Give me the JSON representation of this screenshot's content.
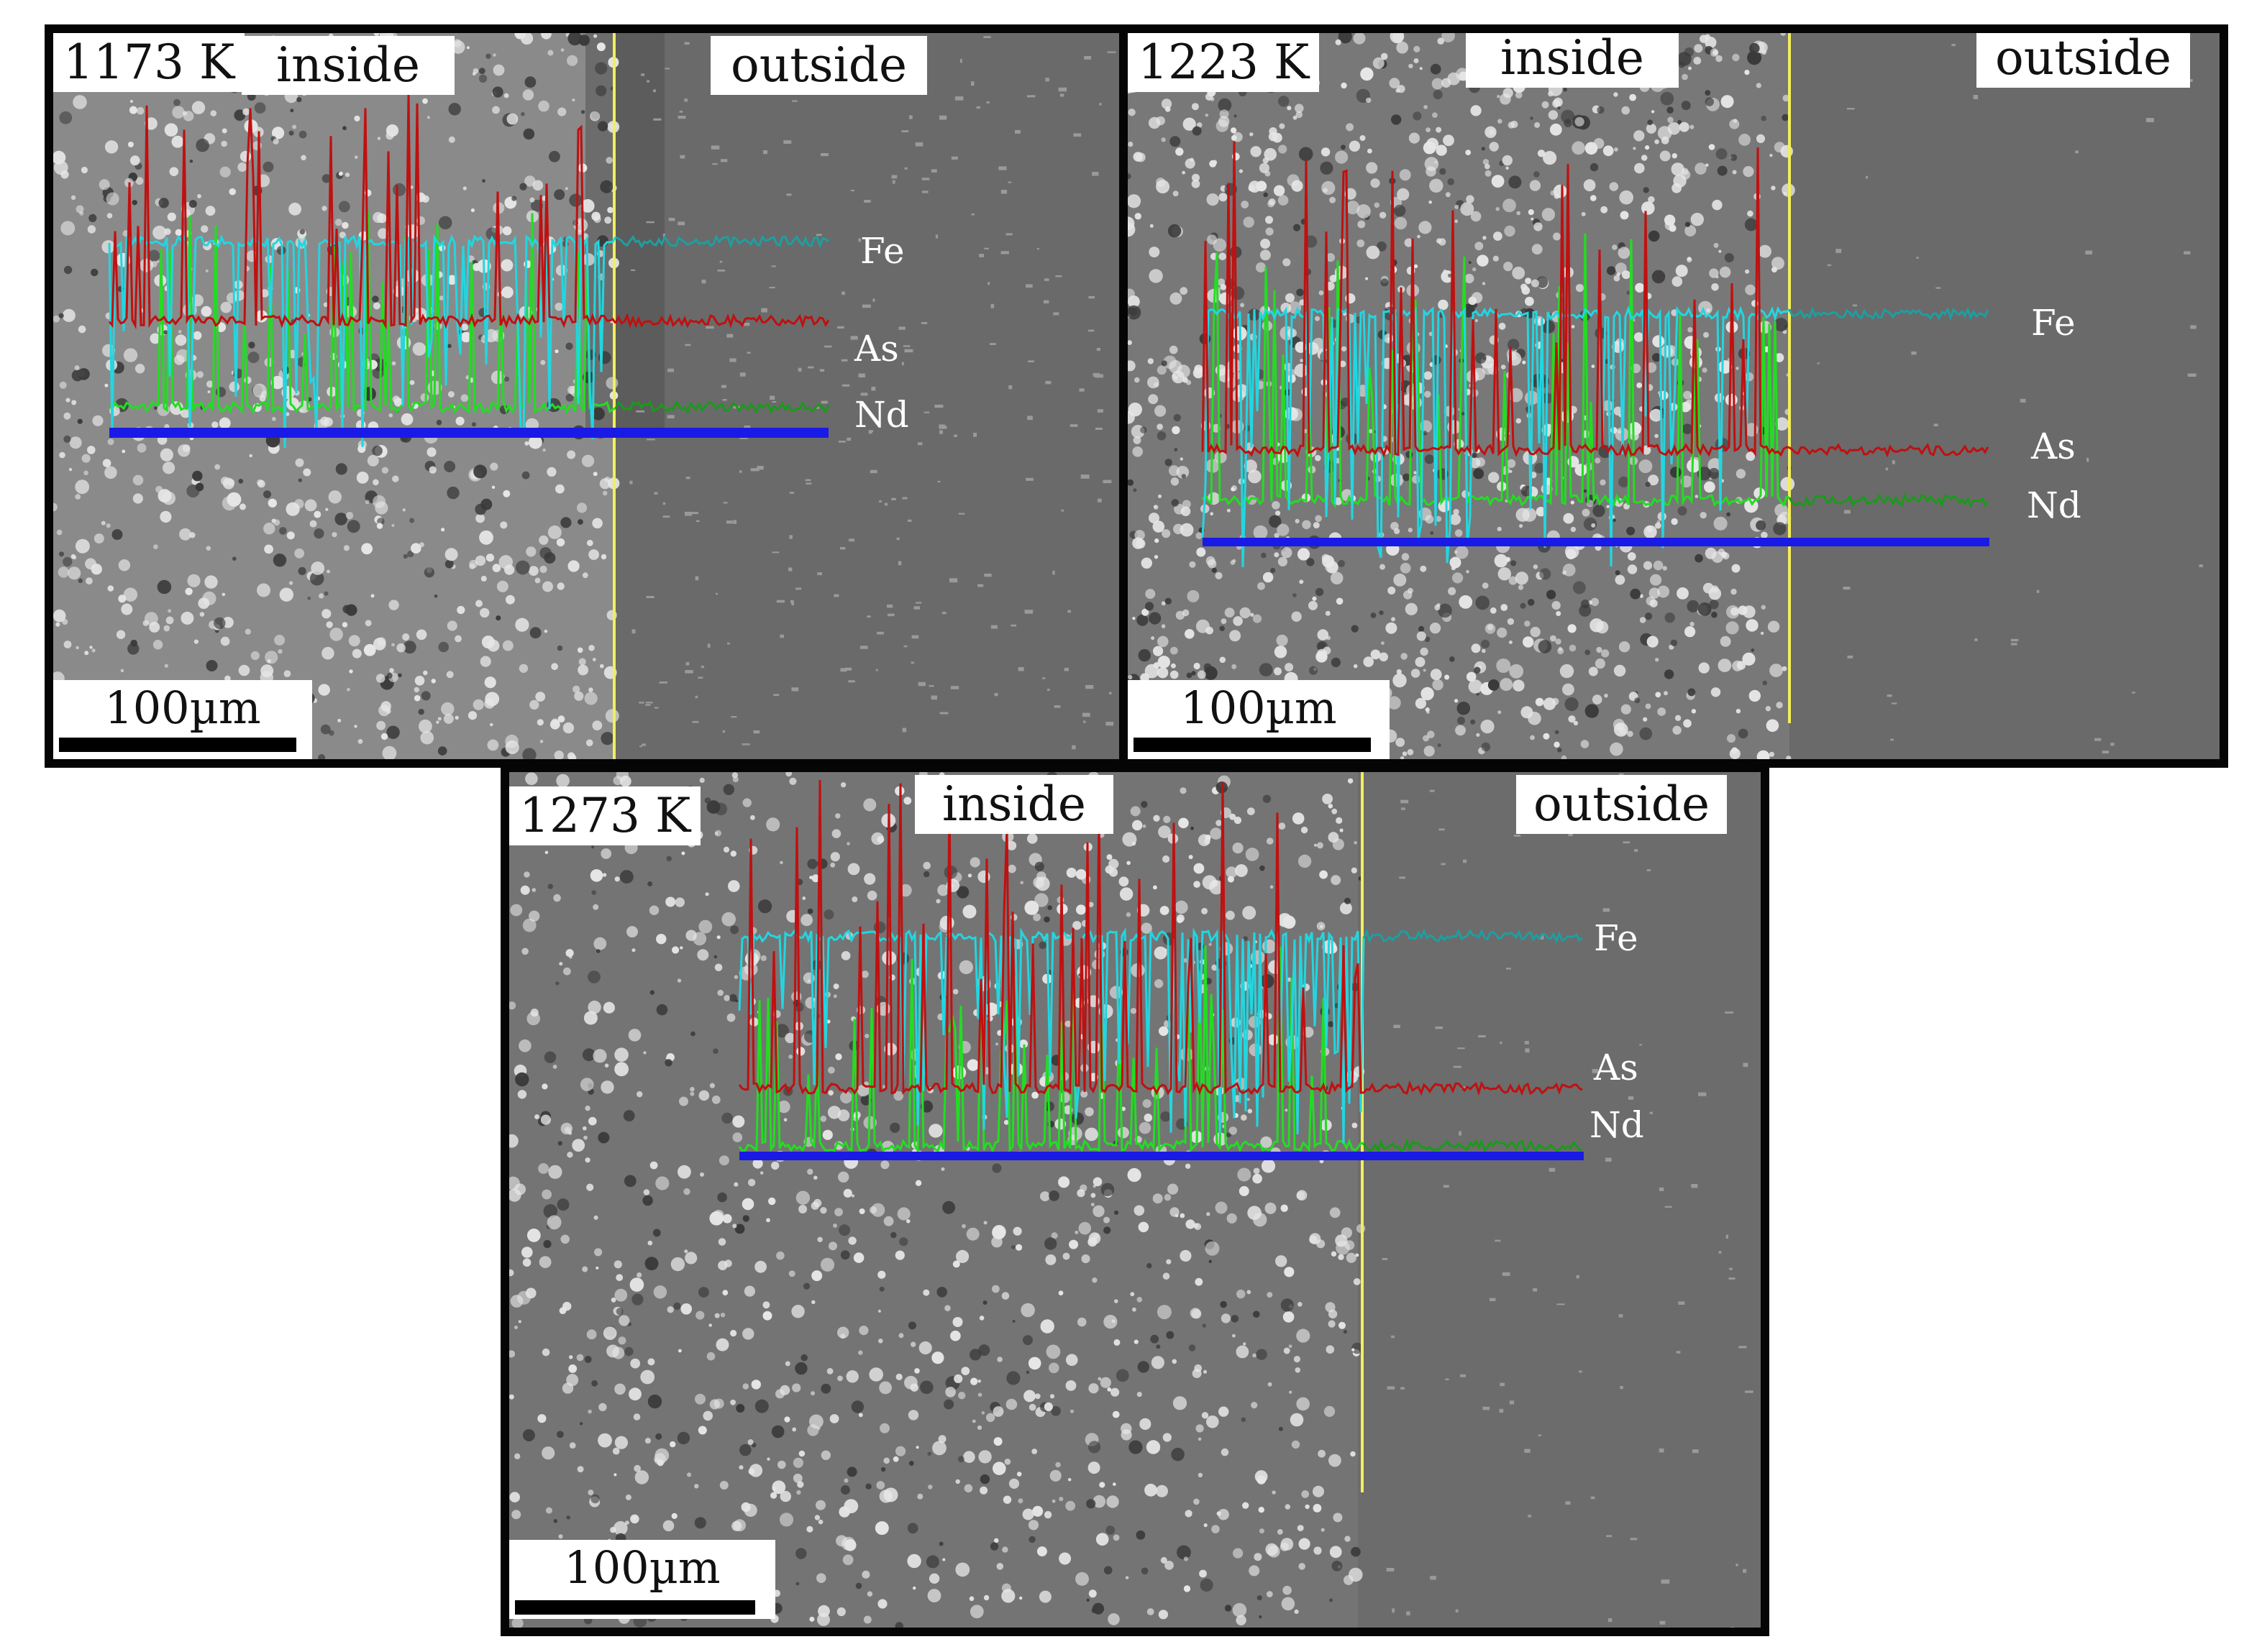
{
  "panels": [
    {
      "temperature": "1173 K",
      "inside_label": "inside",
      "outside_label": "outside",
      "scale_bar": "100µm",
      "elements": [
        "Fe",
        "As",
        "Nd"
      ]
    },
    {
      "temperature": "1223 K",
      "inside_label": "inside",
      "outside_label": "outside",
      "scale_bar": "100µm",
      "elements": [
        "Fe",
        "As",
        "Nd"
      ]
    },
    {
      "temperature": "1273 K",
      "inside_label": "inside",
      "outside_label": "outside",
      "scale_bar": "100µm",
      "elements": [
        "Fe",
        "As",
        "Nd"
      ]
    }
  ],
  "colors": {
    "Fe": "#1f9ea0",
    "Fe_inside": "#22d6e0",
    "As": "#c01010",
    "Nd": "#1a9a1a",
    "Nd_inside": "#22dd22",
    "scan_line": "#1a1ae6",
    "interface_line": "#f2ee5a",
    "outside_bg": "#6e6e6e",
    "inside_bg": "#7d7d7d",
    "particles": "#e6e6e6"
  }
}
